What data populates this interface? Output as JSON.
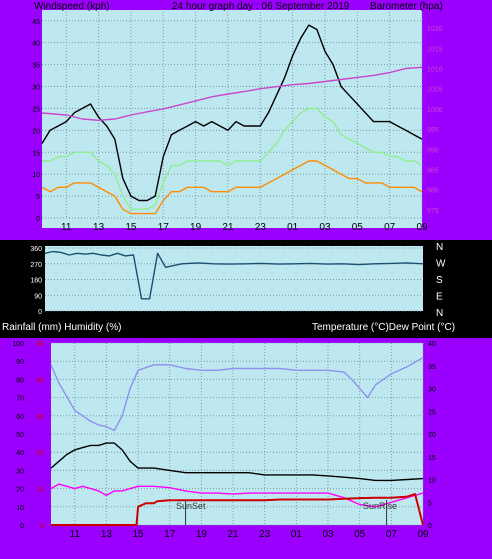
{
  "chart_data": [
    {
      "type": "line",
      "title": "24 hour graph day : 06 September 2019",
      "ylabel": "Windspeed (kph)",
      "y2label": "Barometer (hpa)",
      "x_ticks": [
        "11",
        "13",
        "15",
        "17",
        "19",
        "21",
        "23",
        "01",
        "03",
        "05",
        "07",
        "09"
      ],
      "y_ticks": [
        "0",
        "5",
        "10",
        "15",
        "20",
        "25",
        "30",
        "35",
        "40",
        "45"
      ],
      "ylim": [
        0,
        47
      ],
      "y2_ticks": [
        "975",
        "980",
        "985",
        "990",
        "995",
        "1000",
        "1005",
        "1010",
        "1015",
        "1020"
      ],
      "y2lim": [
        973,
        1024
      ],
      "series": [
        {
          "axis": "left",
          "color": "#000000",
          "x": [
            9.5,
            10,
            10.5,
            11,
            11.5,
            12,
            12.5,
            13,
            13.5,
            14,
            14.5,
            15,
            15.5,
            16,
            16.5,
            17,
            17.5,
            18,
            18.5,
            19,
            19.5,
            20,
            20.5,
            21,
            21.5,
            22,
            22.5,
            23,
            23.5,
            24,
            24.5,
            25,
            25.5,
            26,
            26.5,
            27,
            27.5,
            28,
            28.5,
            29,
            29.5,
            30,
            30.5,
            31,
            31.5,
            32,
            32.5,
            33
          ],
          "values": [
            17,
            20,
            21,
            22,
            24,
            25,
            26,
            23,
            21,
            18,
            9,
            5,
            4,
            4,
            5,
            14,
            19,
            20,
            21,
            22,
            21,
            22,
            21,
            20,
            22,
            21,
            21,
            21,
            24,
            28,
            32,
            37,
            41,
            44,
            43,
            38,
            35,
            30,
            28,
            26,
            24,
            22,
            22,
            22,
            21,
            20,
            19,
            18
          ]
        },
        {
          "axis": "left",
          "color": "#90ee90",
          "x": [
            9.5,
            10,
            10.5,
            11,
            11.5,
            12,
            12.5,
            13,
            13.5,
            14,
            14.5,
            15,
            15.5,
            16,
            16.5,
            17,
            17.5,
            18,
            18.5,
            19,
            19.5,
            20,
            20.5,
            21,
            21.5,
            22,
            22.5,
            23,
            23.5,
            24,
            24.5,
            25,
            25.5,
            26,
            26.5,
            27,
            27.5,
            28,
            28.5,
            29,
            29.5,
            30,
            30.5,
            31,
            31.5,
            32,
            32.5,
            33
          ],
          "values": [
            13,
            13,
            14,
            14,
            15,
            15,
            15,
            13,
            12,
            10,
            5,
            2,
            2,
            2,
            3,
            8,
            12,
            12,
            13,
            13,
            13,
            13,
            13,
            12,
            13,
            13,
            13,
            13,
            15,
            17,
            20,
            22,
            24,
            25,
            25,
            23,
            22,
            19,
            18,
            17,
            16,
            15,
            15,
            14,
            14,
            13,
            13,
            12
          ]
        },
        {
          "axis": "left",
          "color": "#ff8c00",
          "x": [
            9.5,
            10,
            10.5,
            11,
            11.5,
            12,
            12.5,
            13,
            13.5,
            14,
            14.5,
            15,
            15.5,
            16,
            16.5,
            17,
            17.5,
            18,
            18.5,
            19,
            19.5,
            20,
            20.5,
            21,
            21.5,
            22,
            22.5,
            23,
            23.5,
            24,
            24.5,
            25,
            25.5,
            26,
            26.5,
            27,
            27.5,
            28,
            28.5,
            29,
            29.5,
            30,
            30.5,
            31,
            31.5,
            32,
            32.5,
            33
          ],
          "values": [
            7,
            6,
            7,
            7,
            8,
            8,
            8,
            7,
            6,
            5,
            2,
            1,
            1,
            1,
            1,
            4,
            6,
            6,
            7,
            7,
            7,
            6,
            6,
            6,
            7,
            7,
            7,
            7,
            8,
            9,
            10,
            11,
            12,
            13,
            13,
            12,
            11,
            10,
            9,
            9,
            8,
            8,
            8,
            7,
            7,
            7,
            7,
            6
          ]
        },
        {
          "axis": "right",
          "color": "#cc44cc",
          "x": [
            9.5,
            11,
            12,
            13,
            14,
            15,
            16,
            17,
            18,
            19,
            20,
            21,
            22,
            23,
            24,
            25,
            26,
            27,
            28,
            29,
            30,
            31,
            32,
            33
          ],
          "values": [
            999,
            998.5,
            997.5,
            997.2,
            997.5,
            998.5,
            999.3,
            1000,
            1001,
            1002,
            1003,
            1003.7,
            1004.3,
            1005,
            1005.5,
            1006,
            1006.3,
            1006.8,
            1007.3,
            1007.8,
            1008.3,
            1009,
            1010,
            1010.3
          ]
        }
      ]
    },
    {
      "type": "line",
      "x_ticks": [],
      "y_ticks": [
        "0",
        "90",
        "180",
        "270",
        "360"
      ],
      "ylim": [
        0,
        360
      ],
      "right_labels": [
        "N",
        "W",
        "S",
        "E",
        "N"
      ],
      "series": [
        {
          "color": "#1b4f72",
          "x": [
            9.5,
            10,
            10.5,
            11,
            11.5,
            12,
            12.5,
            13,
            13.5,
            14,
            14.5,
            15,
            15.5,
            16,
            16.5,
            17,
            18,
            19,
            20,
            21,
            22,
            23,
            24,
            25,
            26,
            27,
            28,
            29,
            30,
            31,
            32,
            33
          ],
          "values": [
            330,
            340,
            335,
            320,
            330,
            325,
            330,
            320,
            315,
            330,
            315,
            320,
            70,
            70,
            330,
            250,
            270,
            275,
            270,
            268,
            270,
            272,
            268,
            270,
            272,
            268,
            270,
            265,
            270,
            272,
            275,
            270
          ]
        }
      ]
    },
    {
      "type": "line",
      "ylabel": "Rainfall (mm)  Humidity (%)",
      "y2label": "Temperature (°C)Dew Point (°C)",
      "x_ticks": [
        "11",
        "13",
        "15",
        "17",
        "19",
        "21",
        "23",
        "01",
        "03",
        "05",
        "07",
        "09"
      ],
      "y_ticks": [
        "0",
        "10",
        "20",
        "30",
        "40",
        "50",
        "60",
        "70",
        "80",
        "90",
        "100"
      ],
      "ylim": [
        0,
        100
      ],
      "red_ticks": [
        "0",
        "10",
        "20",
        "30",
        "40",
        "50"
      ],
      "red_lim": [
        0,
        50
      ],
      "y2_ticks": [
        "0",
        "5",
        "10",
        "15",
        "20",
        "25",
        "30",
        "35",
        "40"
      ],
      "y2lim": [
        0,
        40
      ],
      "annotations": [
        "SunSet",
        "SunRise"
      ],
      "series": [
        {
          "axis": "left",
          "color": "#9090ee",
          "x": [
            9.5,
            10,
            11,
            12,
            12.5,
            13,
            13.5,
            14,
            14.5,
            15,
            16,
            17,
            18,
            19,
            20,
            21,
            22,
            23,
            24,
            25,
            26,
            27,
            28,
            28.5,
            29,
            29.5,
            30,
            31,
            32,
            33
          ],
          "values": [
            88,
            78,
            63,
            57,
            55,
            54,
            52,
            60,
            75,
            85,
            88,
            88,
            86,
            85,
            85,
            86,
            86,
            86,
            86,
            85,
            85,
            85,
            84,
            80,
            75,
            70,
            77,
            83,
            87,
            92
          ]
        },
        {
          "axis": "right",
          "color": "#000000",
          "x": [
            9.5,
            10,
            10.5,
            11,
            11.5,
            12,
            12.5,
            13,
            13.5,
            14,
            14.5,
            15,
            16,
            17,
            18,
            19,
            20,
            21,
            22,
            23,
            24,
            25,
            26,
            27,
            28,
            29,
            30,
            31,
            32,
            33
          ],
          "values": [
            12.5,
            14,
            15.5,
            16.5,
            17,
            17.5,
            17.5,
            18,
            18,
            16.5,
            14,
            12.5,
            12.5,
            12,
            11.5,
            11.5,
            11.5,
            11.5,
            11.5,
            11,
            11,
            11,
            11,
            10.8,
            10.5,
            10.2,
            9.8,
            9.8,
            10,
            10.2
          ]
        },
        {
          "axis": "right",
          "color": "#ff00ff",
          "x": [
            9.5,
            10,
            10.5,
            11,
            11.5,
            12,
            12.5,
            13,
            13.5,
            14,
            15,
            16,
            17,
            18,
            19,
            20,
            21,
            22,
            23,
            24,
            25,
            26,
            27,
            28,
            29,
            30,
            31,
            32,
            33
          ],
          "values": [
            8,
            9,
            8.5,
            8,
            8.5,
            8,
            7.5,
            6.5,
            7.5,
            7.5,
            8.5,
            8.5,
            8.2,
            7.5,
            7,
            7,
            6.8,
            7,
            7,
            7,
            7,
            7,
            7,
            6,
            4.5,
            4,
            5,
            6,
            7
          ]
        },
        {
          "axis": "red",
          "color": "#cc0000",
          "x": [
            9.5,
            14.9,
            15,
            15.5,
            16,
            16.2,
            17,
            18,
            19,
            20,
            21,
            22,
            23,
            24,
            25,
            26,
            27,
            28,
            29,
            30,
            31,
            32,
            32.5,
            33
          ],
          "values": [
            0,
            0,
            5,
            6,
            6,
            6.5,
            6.8,
            6.8,
            6.8,
            6.8,
            6.8,
            6.8,
            6.8,
            7,
            7,
            7,
            7,
            7.2,
            7.4,
            7.5,
            7.5,
            7.8,
            8.5,
            0
          ]
        }
      ]
    }
  ]
}
